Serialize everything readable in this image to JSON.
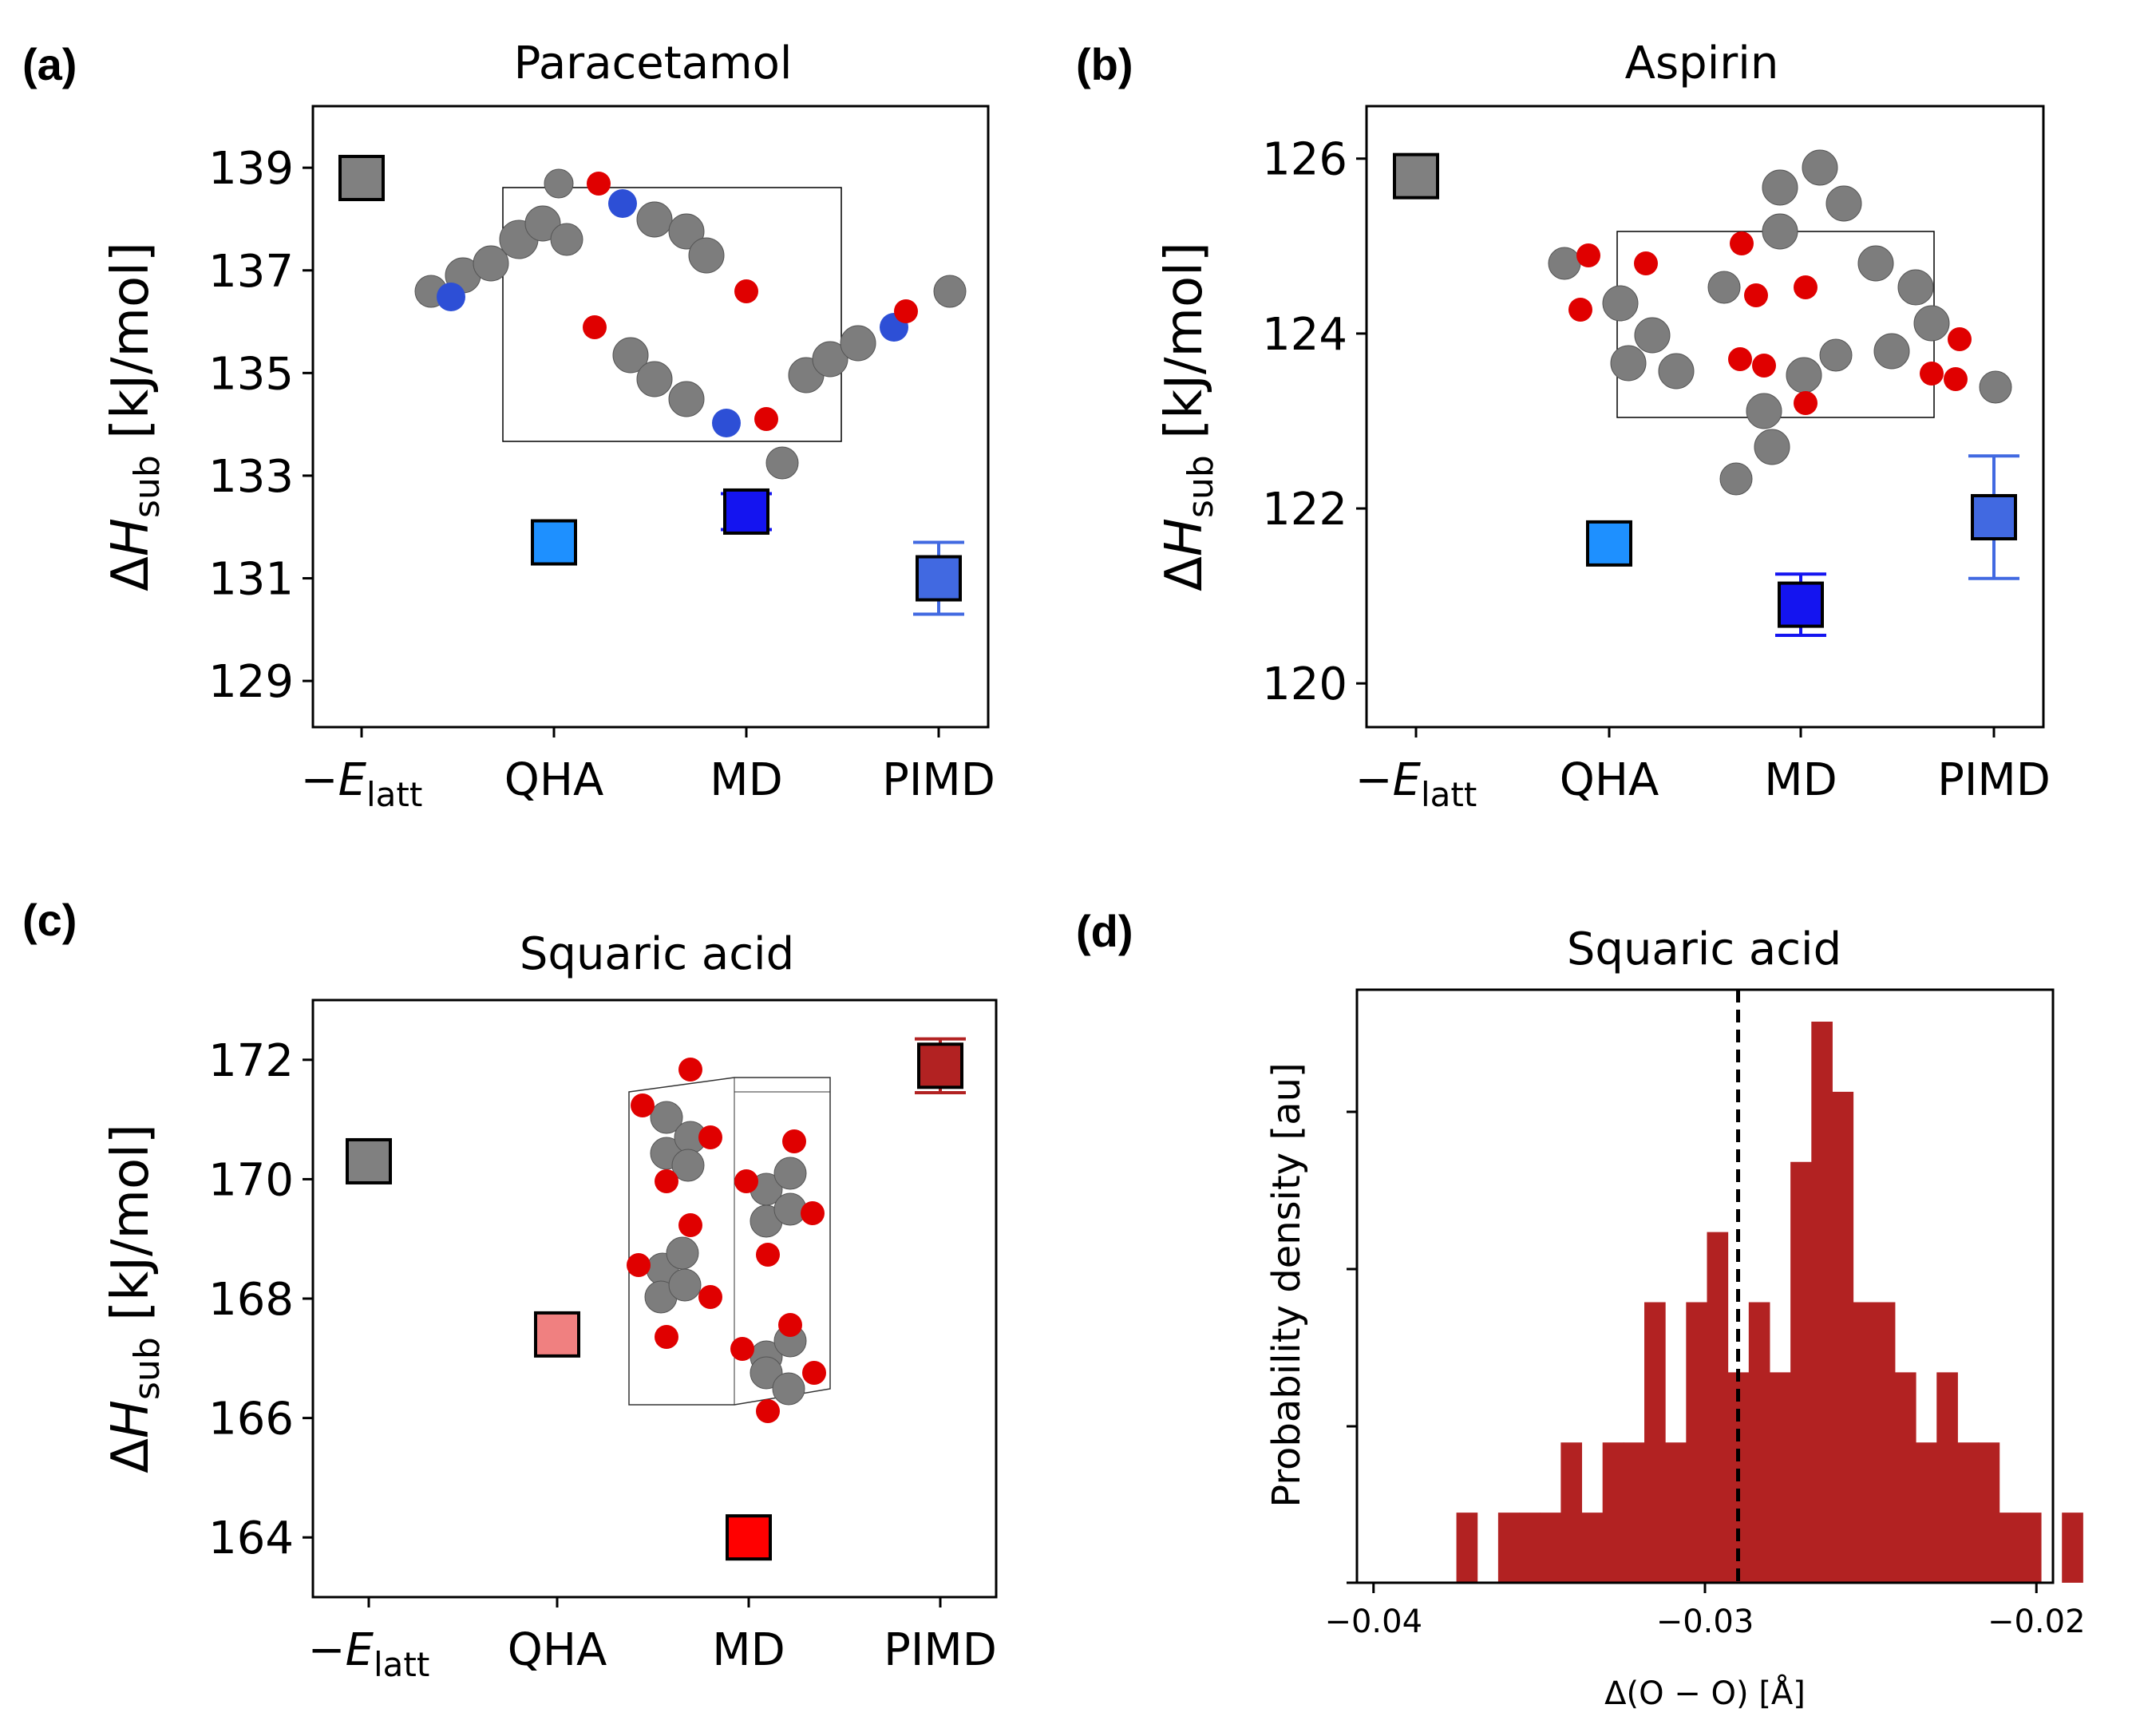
{
  "panel_labels": [
    "(a)",
    "(b)",
    "(c)",
    "(d)"
  ],
  "colors": {
    "gray": "#808080",
    "dodgerblue": "#1e90ff",
    "blue": "#1414f0",
    "royalblue": "#4169e1",
    "lightcoral": "#f08080",
    "red": "#ff0000",
    "darkred": "#b22222"
  },
  "chart_data": [
    {
      "type": "scatter",
      "panel": "(a)",
      "title": "Paracetamol",
      "ylabel": "ΔH_sub [kJ/mol]",
      "categories": [
        "−E_latt",
        "QHA",
        "MD",
        "PIMD"
      ],
      "values": [
        138.8,
        131.7,
        132.3,
        131.0
      ],
      "errors": [
        0,
        0,
        0.35,
        0.7
      ],
      "colors": [
        "gray",
        "dodgerblue",
        "blue",
        "royalblue"
      ],
      "yticks": [
        129,
        131,
        133,
        135,
        137,
        139
      ],
      "ylim": [
        128.1,
        140.2
      ],
      "inset": "molecular crystal structure image"
    },
    {
      "type": "scatter",
      "panel": "(b)",
      "title": "Aspirin",
      "ylabel": "ΔH_sub [kJ/mol]",
      "categories": [
        "−E_latt",
        "QHA",
        "MD",
        "PIMD"
      ],
      "values": [
        125.8,
        121.6,
        120.9,
        121.9
      ],
      "errors": [
        0,
        0,
        0.35,
        0.7
      ],
      "colors": [
        "gray",
        "dodgerblue",
        "blue",
        "royalblue"
      ],
      "yticks": [
        120,
        122,
        124,
        126
      ],
      "ylim": [
        119.5,
        126.6
      ],
      "inset": "molecular crystal structure image"
    },
    {
      "type": "scatter",
      "panel": "(c)",
      "title": "Squaric acid",
      "ylabel": "ΔH_sub [kJ/mol]",
      "categories": [
        "−E_latt",
        "QHA",
        "MD",
        "PIMD"
      ],
      "values": [
        170.3,
        167.4,
        164.0,
        171.9
      ],
      "errors": [
        0,
        0,
        0,
        0.45
      ],
      "colors": [
        "gray",
        "lightcoral",
        "red",
        "darkred"
      ],
      "yticks": [
        164,
        166,
        168,
        170,
        172
      ],
      "ylim": [
        163.0,
        173.0
      ],
      "inset": "molecular crystal structure image"
    },
    {
      "type": "bar",
      "panel": "(d)",
      "title": "Squaric acid",
      "xlabel": "Δ(O − O) [Å]",
      "ylabel": "Probability density [au]",
      "xticks": [
        "−0.04",
        "−0.03",
        "−0.02"
      ],
      "xlim": [
        -0.0405,
        -0.0195
      ],
      "bin_start": -0.0375,
      "bin_width": 0.00063,
      "counts": [
        1,
        0,
        1,
        1,
        1,
        2,
        1,
        2,
        2,
        4,
        2,
        4,
        5,
        3,
        4,
        3,
        6,
        8,
        7,
        4,
        4,
        3,
        2,
        3,
        2,
        2,
        1,
        1,
        0,
        1
      ],
      "vline": -0.029,
      "color": "darkred"
    }
  ]
}
